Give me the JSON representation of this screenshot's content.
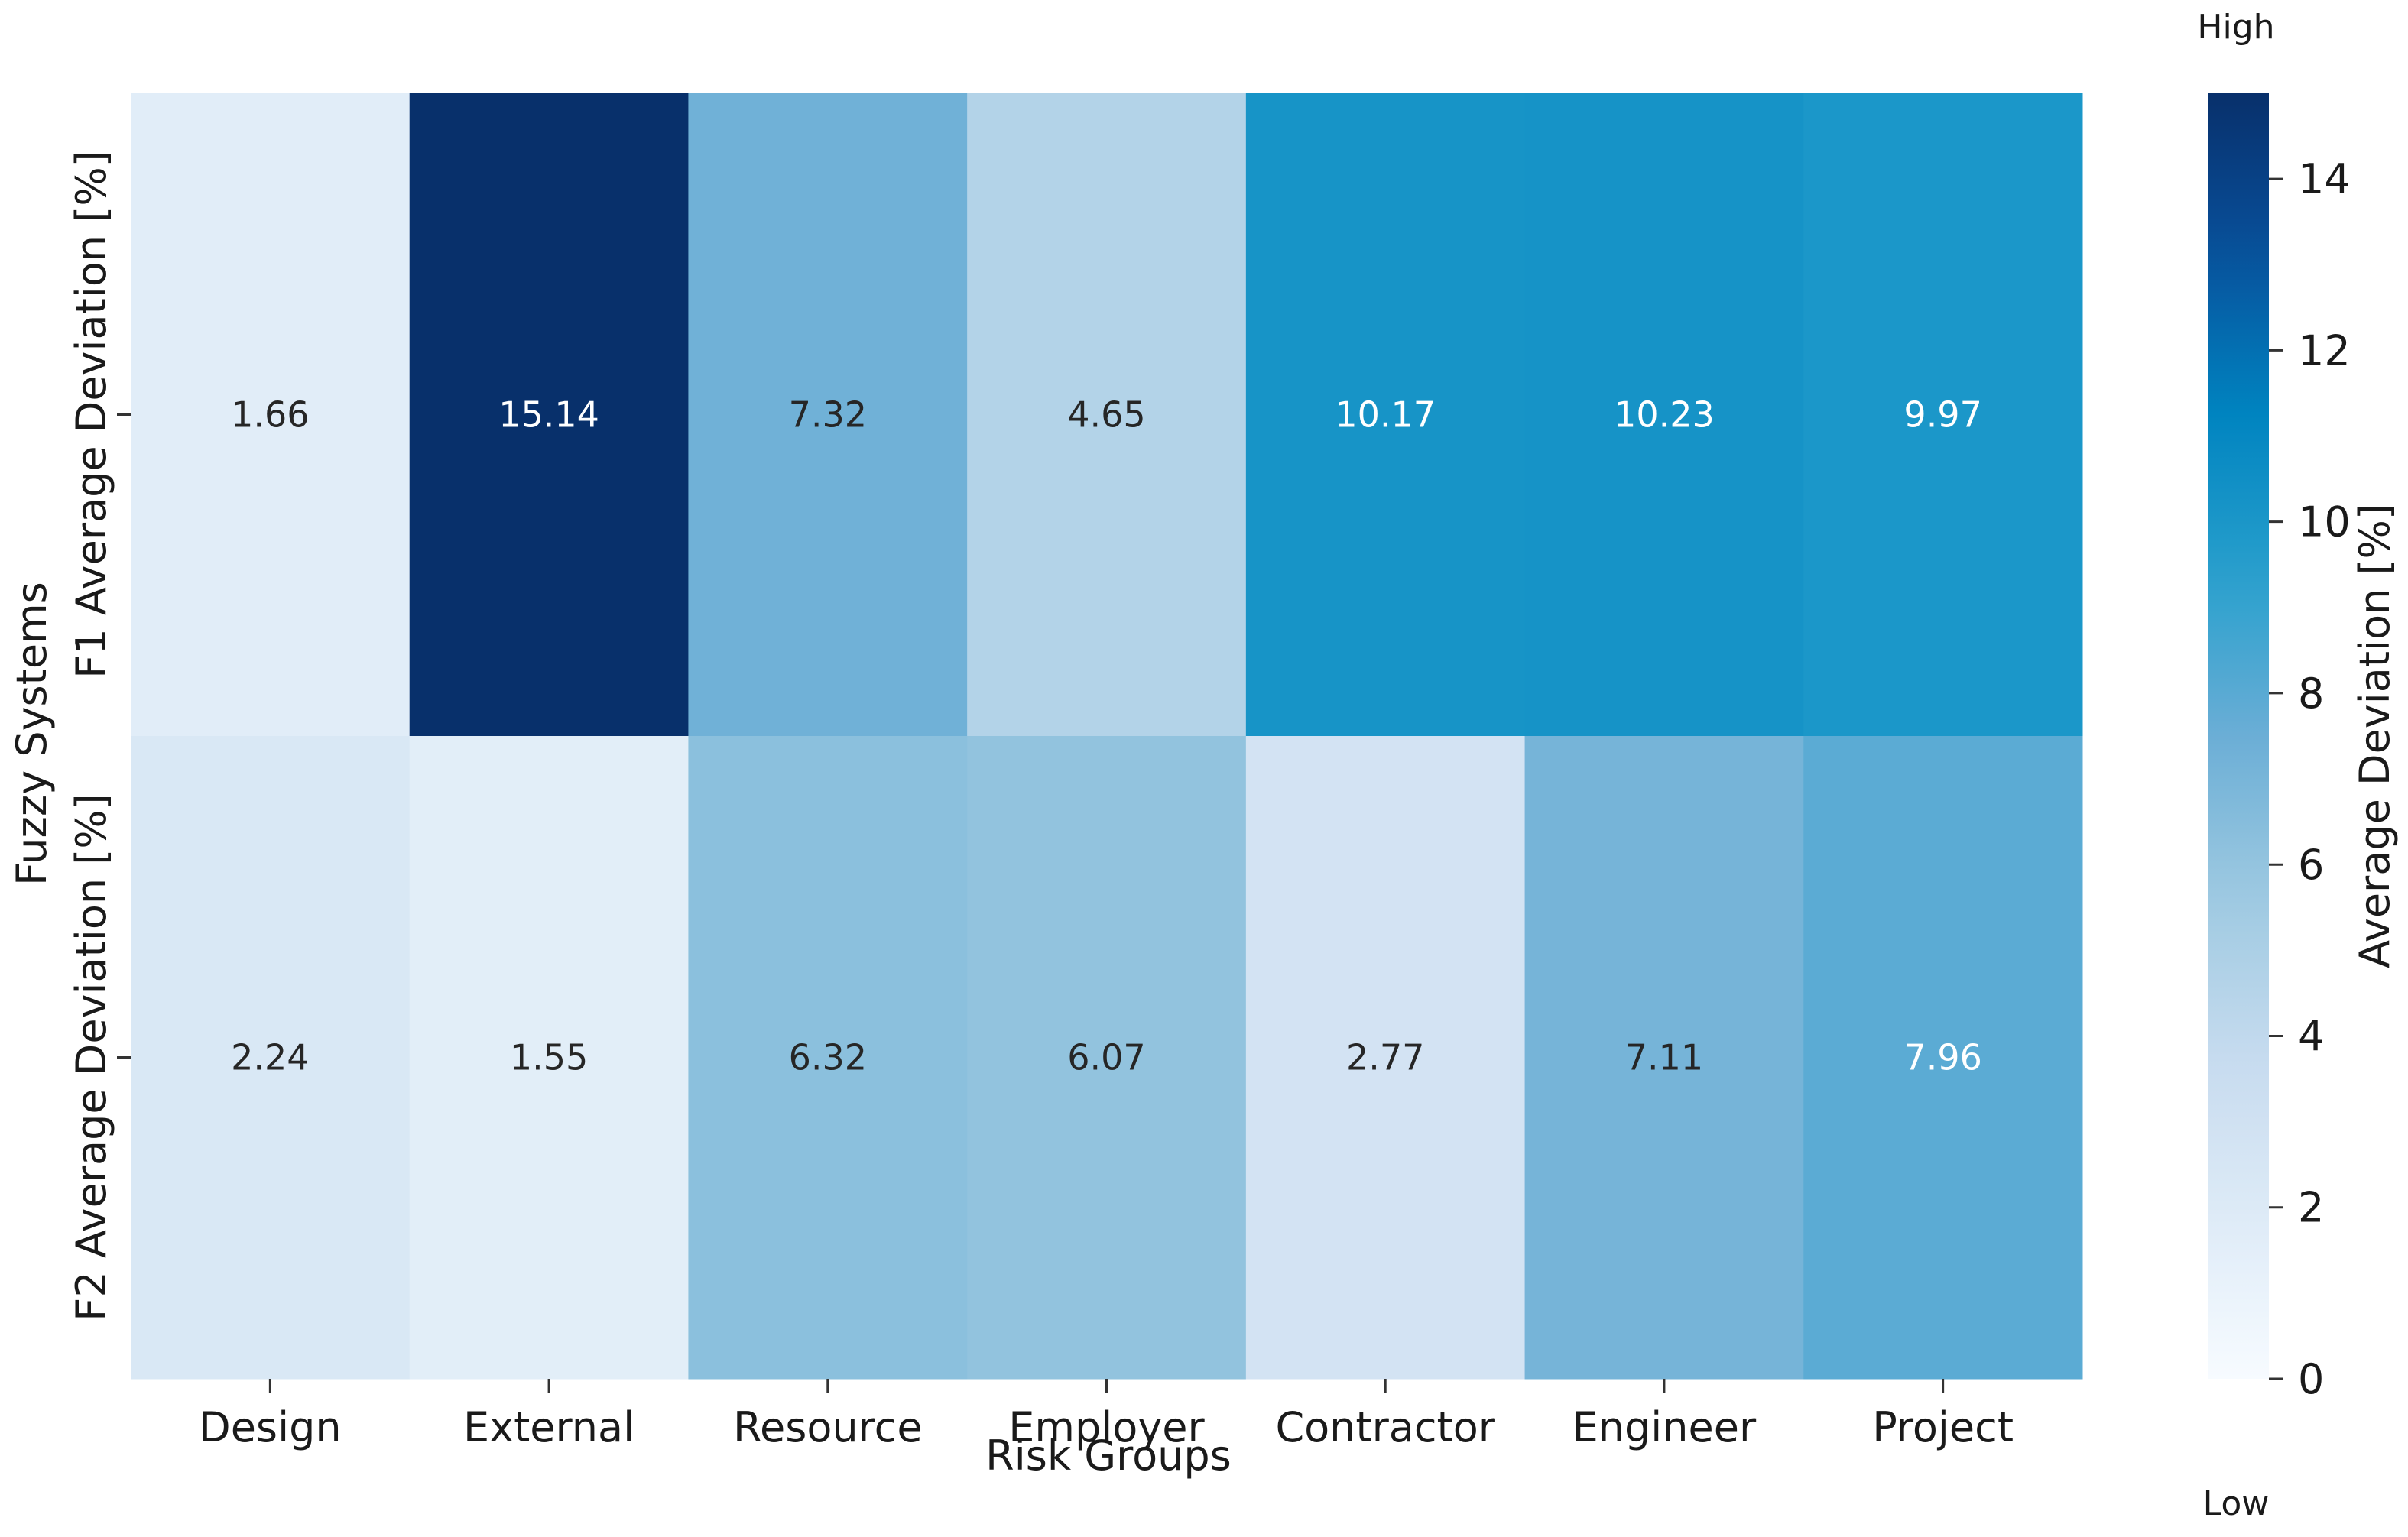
{
  "chart_data": {
    "type": "heatmap",
    "xlabel": "Risk Groups",
    "ylabel": "Fuzzy Systems",
    "categories": [
      "Design",
      "External",
      "Resource",
      "Employer",
      "Contractor",
      "Engineer",
      "Project"
    ],
    "rows": [
      "F1 Average Deviation [%]",
      "F2 Average Deviation [%]"
    ],
    "values": [
      [
        1.66,
        15.14,
        7.32,
        4.65,
        10.17,
        10.23,
        9.97
      ],
      [
        2.24,
        1.55,
        6.32,
        6.07,
        2.77,
        7.11,
        7.96
      ]
    ],
    "colorbar": {
      "label": "Average Deviation [%]",
      "range": [
        0,
        15
      ],
      "ticks": [
        0,
        2,
        4,
        6,
        8,
        10,
        12,
        14
      ],
      "high_label": "High",
      "low_label": "Low",
      "colormap": "Blues"
    }
  }
}
